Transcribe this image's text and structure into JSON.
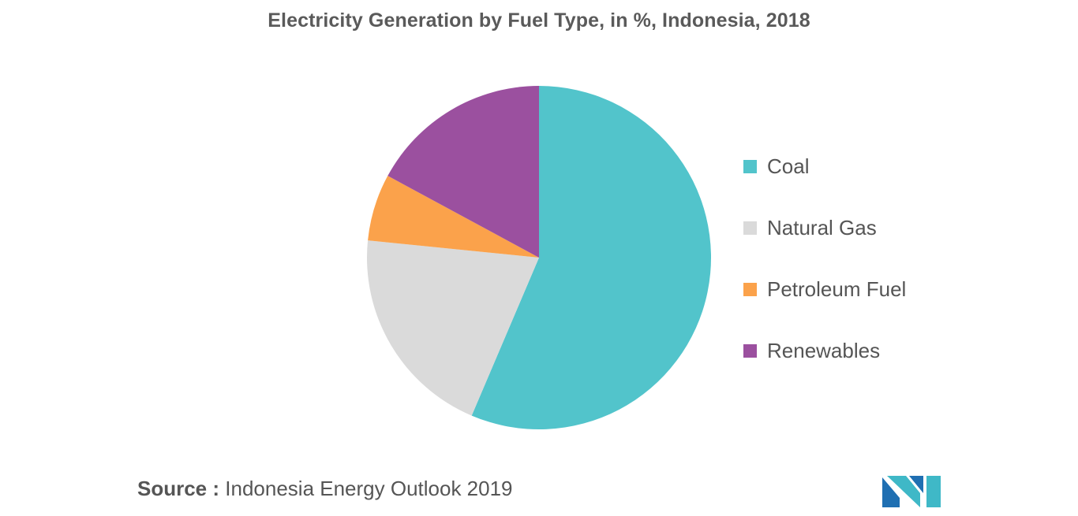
{
  "chart_data": {
    "type": "pie",
    "title": "Electricity Generation by Fuel Type, in %, Indonesia, 2018",
    "categories": [
      "Coal",
      "Natural Gas",
      "Petroleum Fuel",
      "Renewables"
    ],
    "values": [
      56.4,
      20.2,
      6.3,
      17.1
    ],
    "colors": [
      "#52c4cb",
      "#dadada",
      "#fba24b",
      "#9b509f"
    ],
    "start_angle": "12 o'clock, clockwise",
    "legend_position": "right"
  },
  "source": {
    "prefix": "Source :",
    "text": "Indonesia Energy Outlook 2019"
  },
  "logo": {
    "icon": "mordor-intelligence-logo-icon",
    "colors": [
      "#1f6fb2",
      "#3fb8c7"
    ]
  }
}
